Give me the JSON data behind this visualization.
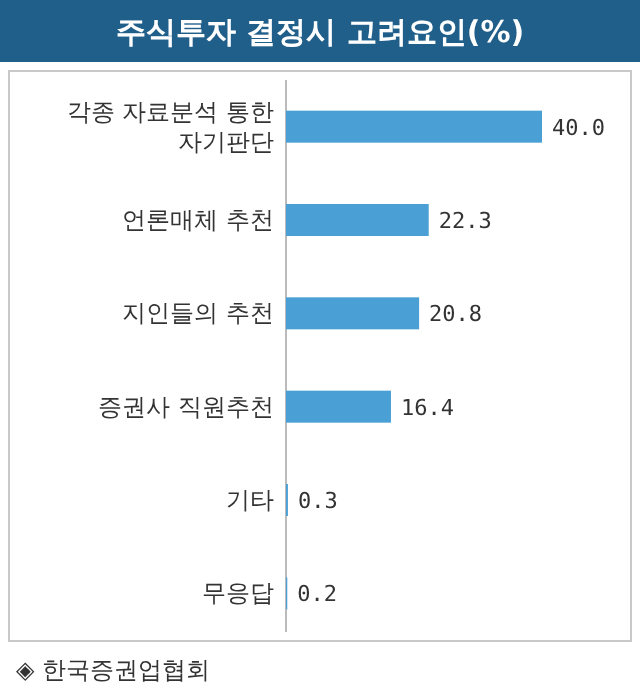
{
  "chart_data": {
    "type": "bar",
    "orientation": "horizontal",
    "title": "주식투자 결정시 고려요인(%)",
    "categories": [
      "각종 자료분석 통한 자기판단",
      "언론매체 추천",
      "지인들의 추천",
      "증권사 직원추천",
      "기타",
      "무응답"
    ],
    "values": [
      40.0,
      22.3,
      20.8,
      16.4,
      0.3,
      0.2
    ],
    "value_labels": [
      "40.0",
      "22.3",
      "20.8",
      "16.4",
      "0.3",
      "0.2"
    ],
    "color": "#4aa0d5",
    "annotations": [
      "◈ 한국증권업협회"
    ]
  }
}
